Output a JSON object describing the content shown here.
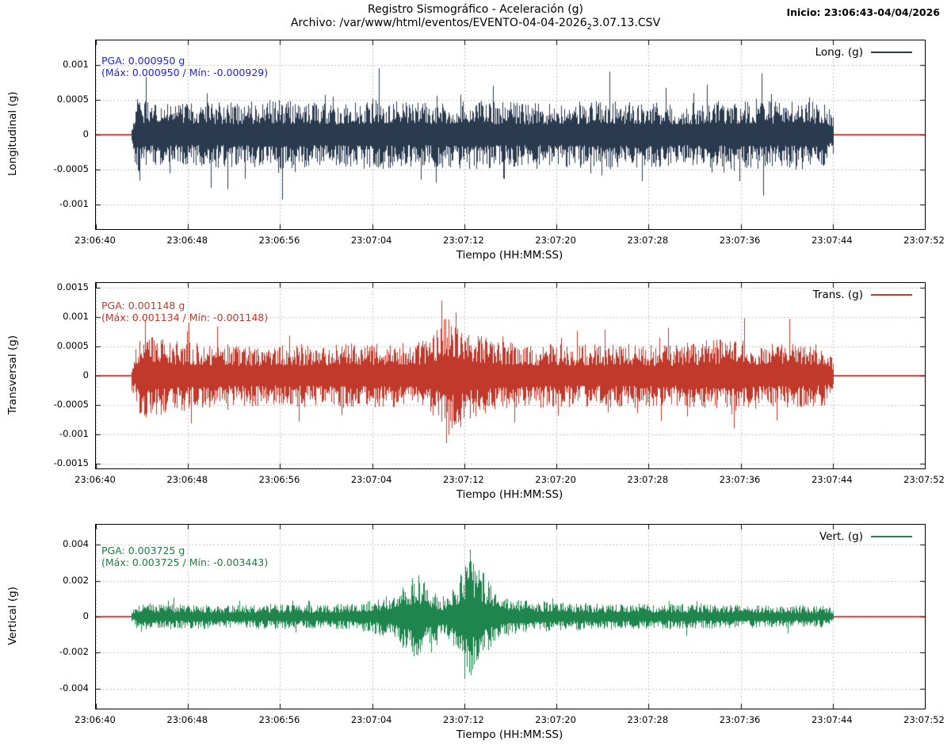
{
  "header": {
    "title": "Registro Sismográfico - Aceleración (g)",
    "file_prefix": "Archivo: /var/www/html/eventos/EVENTO-04-04-2026",
    "file_sub": "2",
    "file_suffix": "3.07.13.CSV",
    "inicio": "Inicio: 23:06:43-04/04/2026"
  },
  "x_axis": {
    "label": "Tiempo (HH:MM:SS)",
    "ticks": [
      "23:06:40",
      "23:06:48",
      "23:06:56",
      "23:07:04",
      "23:07:12",
      "23:07:20",
      "23:07:28",
      "23:07:36",
      "23:07:44",
      "23:07:52"
    ],
    "tick_interval_s": 8,
    "range_s": [
      0,
      72
    ],
    "grid": true
  },
  "colors": {
    "zero_line": "#dd0000",
    "grid": "#aaaaaa",
    "border": "#000000",
    "long_trace": "#2b3b4f",
    "trans_trace": "#c0392b",
    "vert_trace": "#1e854c",
    "long_annotation": "#2323d6",
    "trans_annotation": "#c0392b",
    "vert_annotation": "#1e7d3e"
  },
  "chart_data": [
    {
      "type": "line",
      "name": "longitudinal",
      "ylabel": "Longitudinal (g)",
      "legend": "Long. (g)",
      "legend_position": "top-right",
      "color": "#2b3b4f",
      "annotation_color": "#2323d6",
      "pga_line1": "PGA: 0.000950 g",
      "pga_line2": "(Máx: 0.000950 / Mín: -0.000929)",
      "pga_g": 0.00095,
      "max_g": 0.00095,
      "min_g": -0.000929,
      "ylim": 0.00135,
      "ytick_labels": [
        "0.001",
        "0.0005",
        "0",
        "-0.0005",
        "-0.001"
      ],
      "ytick_values": [
        0.001,
        0.0005,
        0,
        -0.0005,
        -0.001
      ],
      "signal": {
        "start_s": 3.1,
        "end_s": 64.0,
        "envelope": [
          [
            3.1,
            0.0001
          ],
          [
            3.5,
            0.00055
          ],
          [
            5,
            0.00048
          ],
          [
            8,
            0.00045
          ],
          [
            12,
            0.00047
          ],
          [
            16,
            0.0005
          ],
          [
            20,
            0.00046
          ],
          [
            24,
            0.0005
          ],
          [
            28,
            0.00046
          ],
          [
            32,
            0.0005
          ],
          [
            36,
            0.00047
          ],
          [
            40,
            0.00045
          ],
          [
            44,
            0.0005
          ],
          [
            48,
            0.00047
          ],
          [
            52,
            0.00046
          ],
          [
            56,
            0.0005
          ],
          [
            59,
            0.00048
          ],
          [
            62,
            0.0005
          ],
          [
            63.5,
            0.00045
          ],
          [
            64,
            0.00025
          ]
        ],
        "spike_prob": 0.05,
        "spike_max": 1.9,
        "extremes": [
          [
            24.6,
            0.00095
          ],
          [
            16.2,
            -0.000929
          ],
          [
            44.6,
            0.0009
          ],
          [
            57.8,
            0.00088
          ]
        ]
      }
    },
    {
      "type": "line",
      "name": "transversal",
      "ylabel": "Transversal (g)",
      "legend": "Trans. (g)",
      "legend_position": "top-right",
      "color": "#c0392b",
      "annotation_color": "#c0392b",
      "pga_line1": "PGA: 0.001148 g",
      "pga_line2": "(Máx: 0.001134 / Mín: -0.001148)",
      "pga_g": 0.001148,
      "max_g": 0.001134,
      "min_g": -0.001148,
      "ylim": 0.00158,
      "ytick_labels": [
        "0.0015",
        "0.001",
        "0.0005",
        "0",
        "-0.0005",
        "-0.001",
        "-0.0015"
      ],
      "ytick_values": [
        0.0015,
        0.001,
        0.0005,
        0,
        -0.0005,
        -0.001,
        -0.0015
      ],
      "signal": {
        "start_s": 3.1,
        "end_s": 64.0,
        "envelope": [
          [
            3.1,
            0.0002
          ],
          [
            3.8,
            0.00078
          ],
          [
            5.5,
            0.0007
          ],
          [
            7,
            0.0006
          ],
          [
            10,
            0.00055
          ],
          [
            14,
            0.00052
          ],
          [
            18,
            0.00054
          ],
          [
            22,
            0.00056
          ],
          [
            26,
            0.00055
          ],
          [
            28.5,
            0.0006
          ],
          [
            29.5,
            0.00075
          ],
          [
            30.3,
            0.00105
          ],
          [
            31,
            0.00095
          ],
          [
            32,
            0.00085
          ],
          [
            33,
            0.0007
          ],
          [
            35,
            0.0006
          ],
          [
            38,
            0.00055
          ],
          [
            42,
            0.00053
          ],
          [
            46,
            0.00055
          ],
          [
            50,
            0.00052
          ],
          [
            53,
            0.00058
          ],
          [
            55,
            0.00068
          ],
          [
            56.5,
            0.0006
          ],
          [
            58,
            0.00055
          ],
          [
            60,
            0.00056
          ],
          [
            62,
            0.00055
          ],
          [
            63.5,
            0.0005
          ],
          [
            64,
            0.0003
          ]
        ],
        "spike_prob": 0.05,
        "spike_max": 1.8,
        "extremes": [
          [
            30.0,
            0.001134
          ],
          [
            30.45,
            -0.001148
          ],
          [
            4.3,
            0.00095
          ],
          [
            56.3,
            0.00098
          ]
        ]
      }
    },
    {
      "type": "line",
      "name": "vertical",
      "ylabel": "Vertical (g)",
      "legend": "Vert. (g)",
      "legend_position": "top-right",
      "color": "#1e854c",
      "annotation_color": "#1e7d3e",
      "pga_line1": "PGA: 0.003725 g",
      "pga_line2": "(Máx: 0.003725 / Mín: -0.003443)",
      "pga_g": 0.003725,
      "max_g": 0.003725,
      "min_g": -0.003443,
      "ylim": 0.0051,
      "ytick_labels": [
        "0.004",
        "0.002",
        "0",
        "-0.002",
        "-0.004"
      ],
      "ytick_values": [
        0.004,
        0.002,
        0,
        -0.002,
        -0.004
      ],
      "signal": {
        "start_s": 3.1,
        "end_s": 64.0,
        "envelope": [
          [
            3.1,
            0.00035
          ],
          [
            3.8,
            0.00085
          ],
          [
            5,
            0.00075
          ],
          [
            7,
            0.0007
          ],
          [
            10,
            0.00068
          ],
          [
            13,
            0.00065
          ],
          [
            16,
            0.0007
          ],
          [
            19,
            0.00068
          ],
          [
            22,
            0.00072
          ],
          [
            24,
            0.0009
          ],
          [
            25.5,
            0.0012
          ],
          [
            27,
            0.002
          ],
          [
            28,
            0.0023
          ],
          [
            29,
            0.0016
          ],
          [
            30,
            0.0011
          ],
          [
            31,
            0.0014
          ],
          [
            31.8,
            0.0028
          ],
          [
            32.5,
            0.0036
          ],
          [
            33.2,
            0.003
          ],
          [
            34,
            0.002
          ],
          [
            35,
            0.0013
          ],
          [
            36.5,
            0.001
          ],
          [
            38,
            0.00085
          ],
          [
            40,
            0.0008
          ],
          [
            43,
            0.00075
          ],
          [
            46,
            0.0007
          ],
          [
            49,
            0.00072
          ],
          [
            52,
            0.0007
          ],
          [
            55,
            0.00068
          ],
          [
            58,
            0.00065
          ],
          [
            61,
            0.00062
          ],
          [
            63.5,
            0.0006
          ],
          [
            64,
            0.00035
          ]
        ],
        "spike_prob": 0.04,
        "spike_max": 1.6,
        "extremes": [
          [
            32.5,
            0.003725
          ],
          [
            32.0,
            -0.003443
          ],
          [
            28.0,
            0.0023
          ],
          [
            27.6,
            -0.0022
          ]
        ]
      }
    }
  ]
}
